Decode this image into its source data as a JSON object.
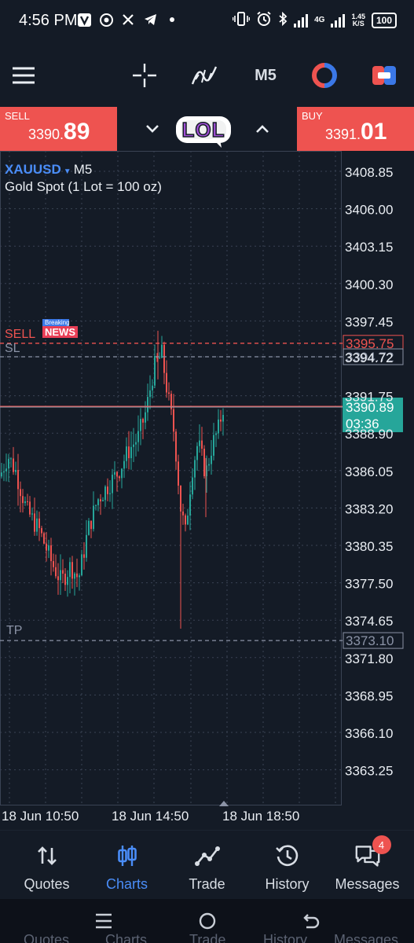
{
  "status_bar": {
    "time": "4:56 PM",
    "icons_left": [
      "v-app-icon",
      "chrome-icon",
      "x-icon",
      "telegram-icon",
      "dot-icon"
    ],
    "net_type": "4G",
    "speed": "1.45",
    "speed_unit": "K/S",
    "battery": "100"
  },
  "toolbar": {
    "timeframe": "M5",
    "icons": [
      "menu-icon",
      "crosshair-icon",
      "indicators-icon",
      "timeframe-button",
      "one-click-trading-icon",
      "trade-panel-icon"
    ]
  },
  "trade": {
    "sell_label": "SELL",
    "sell_price_main": "3390.",
    "sell_price_big": "89",
    "buy_label": "BUY",
    "buy_price_main": "3391.",
    "buy_price_big": "01",
    "sticker_text": "LOL"
  },
  "chart_info": {
    "symbol": "XAUUSD",
    "timeframe": "M5",
    "description": "Gold Spot (1 Lot = 100 oz)",
    "news_small": "Breaking",
    "news_big": "NEWS",
    "sell_line_label": "SELL",
    "sl_label": "SL",
    "tp_label": "TP"
  },
  "chart_data": {
    "type": "candlestick",
    "y_ticks": [
      "3408.85",
      "3406.00",
      "3403.15",
      "3400.30",
      "3397.45",
      "3394.72",
      "3391.75",
      "3388.90",
      "3386.05",
      "3383.20",
      "3380.35",
      "3377.50",
      "3374.65",
      "3371.80",
      "3368.95",
      "3366.10",
      "3363.25"
    ],
    "x_ticks": [
      "18 Jun 10:50",
      "18 Jun 14:50",
      "18 Jun 18:50"
    ],
    "ylim": [
      3361.5,
      3411.0
    ],
    "levels": [
      {
        "name": "sell-order",
        "value": 3395.75,
        "label": "3395.75",
        "color": "#ee5350"
      },
      {
        "name": "stop-loss",
        "value": 3394.72,
        "label": "3394.72",
        "color": "#8b93a6"
      },
      {
        "name": "current-bid",
        "value": 3390.89,
        "label": "3390.89",
        "countdown": "03:36",
        "color": "#26a69a"
      },
      {
        "name": "take-profit",
        "value": 3373.1,
        "label": "3373.10",
        "color": "#8b93a6"
      }
    ],
    "ask_value": 3391.01,
    "up_color": "#26a69a",
    "down_color": "#ee5350"
  },
  "bottom_nav": {
    "items": [
      {
        "label": "Quotes",
        "icon": "quotes-icon"
      },
      {
        "label": "Charts",
        "icon": "charts-icon",
        "active": true
      },
      {
        "label": "Trade",
        "icon": "trade-icon"
      },
      {
        "label": "History",
        "icon": "history-icon"
      },
      {
        "label": "Messages",
        "icon": "messages-icon",
        "badge": "4"
      }
    ]
  },
  "system_nav": {
    "icons": [
      "recents-icon",
      "home-icon",
      "back-icon"
    ],
    "ghost_labels": [
      "Quotes",
      "Charts",
      "Trade",
      "History",
      "Messages"
    ]
  }
}
